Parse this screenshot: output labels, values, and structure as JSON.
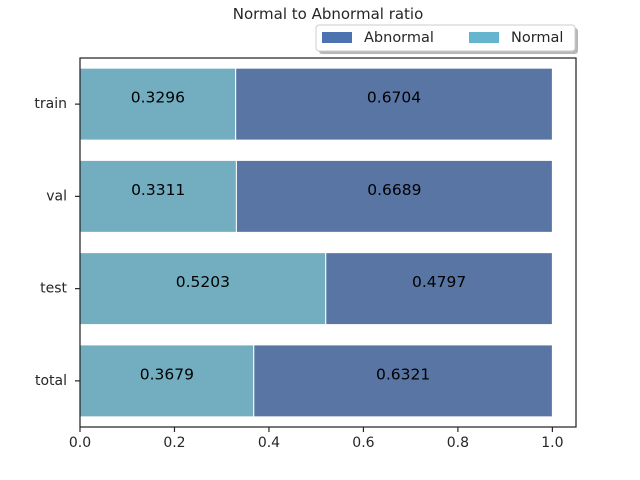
{
  "chart_data": {
    "type": "bar",
    "orientation": "horizontal",
    "stacked": true,
    "title": "Normal to Abnormal ratio",
    "categories": [
      "train",
      "val",
      "test",
      "total"
    ],
    "series": [
      {
        "name": "Normal",
        "values": [
          0.3296,
          0.3311,
          0.5203,
          0.3679
        ],
        "labels": [
          "0.3296",
          "0.3311",
          "0.5203",
          "0.3679"
        ],
        "color": "#72adc0"
      },
      {
        "name": "Abnormal",
        "values": [
          0.6704,
          0.6689,
          0.4797,
          0.6321
        ],
        "labels": [
          "0.6704",
          "0.6689",
          "0.4797",
          "0.6321"
        ],
        "color": "#5875a4"
      }
    ],
    "legend": {
      "position": "top-right",
      "entries": [
        {
          "name": "Abnormal",
          "color": "#4c72b0"
        },
        {
          "name": "Normal",
          "color": "#64b5cd"
        }
      ]
    },
    "xlim": [
      0.0,
      1.05
    ],
    "xticks": [
      0.0,
      0.2,
      0.4,
      0.6,
      0.8,
      1.0
    ],
    "xtick_labels": [
      "0.0",
      "0.2",
      "0.4",
      "0.6",
      "0.8",
      "1.0"
    ],
    "grid": false
  }
}
